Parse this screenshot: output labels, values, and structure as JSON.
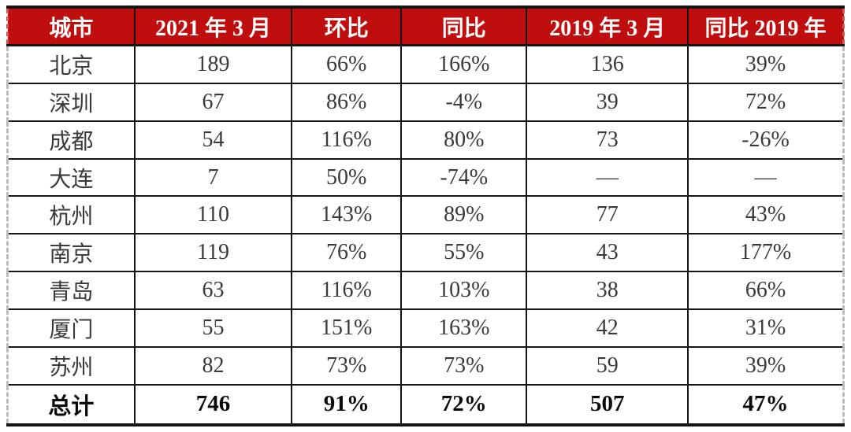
{
  "table": {
    "headers": [
      "城市",
      "2021 年 3 月",
      "环比",
      "同比",
      "2019 年 3 月",
      "同比 2019 年"
    ],
    "rows": [
      {
        "cells": [
          "北京",
          "189",
          "66%",
          "166%",
          "136",
          "39%"
        ],
        "is_total": false
      },
      {
        "cells": [
          "深圳",
          "67",
          "86%",
          "-4%",
          "39",
          "72%"
        ],
        "is_total": false
      },
      {
        "cells": [
          "成都",
          "54",
          "116%",
          "80%",
          "73",
          "-26%"
        ],
        "is_total": false
      },
      {
        "cells": [
          "大连",
          "7",
          "50%",
          "-74%",
          "—",
          "—"
        ],
        "is_total": false
      },
      {
        "cells": [
          "杭州",
          "110",
          "143%",
          "89%",
          "77",
          "43%"
        ],
        "is_total": false
      },
      {
        "cells": [
          "南京",
          "119",
          "76%",
          "55%",
          "43",
          "177%"
        ],
        "is_total": false
      },
      {
        "cells": [
          "青岛",
          "63",
          "116%",
          "103%",
          "38",
          "66%"
        ],
        "is_total": false
      },
      {
        "cells": [
          "厦门",
          "55",
          "151%",
          "163%",
          "42",
          "31%"
        ],
        "is_total": false
      },
      {
        "cells": [
          "苏州",
          "82",
          "73%",
          "73%",
          "59",
          "39%"
        ],
        "is_total": false
      },
      {
        "cells": [
          "总计",
          "746",
          "91%",
          "72%",
          "507",
          "47%"
        ],
        "is_total": true
      }
    ],
    "colors": {
      "header_bg": "#c00e0e",
      "header_text": "#ffffff",
      "body_text": "#3a3a3a",
      "border": "#141414",
      "edge_dash_header": "#d25555",
      "edge_dash_body": "#bcbcbc"
    }
  },
  "chart_data": {
    "type": "table",
    "title": "",
    "columns": [
      "城市",
      "2021 年 3 月",
      "环比",
      "同比",
      "2019 年 3 月",
      "同比 2019 年"
    ],
    "rows": [
      [
        "北京",
        189,
        "66%",
        "166%",
        136,
        "39%"
      ],
      [
        "深圳",
        67,
        "86%",
        "-4%",
        39,
        "72%"
      ],
      [
        "成都",
        54,
        "116%",
        "80%",
        73,
        "-26%"
      ],
      [
        "大连",
        7,
        "50%",
        "-74%",
        null,
        null
      ],
      [
        "杭州",
        110,
        "143%",
        "89%",
        77,
        "43%"
      ],
      [
        "南京",
        119,
        "76%",
        "55%",
        43,
        "177%"
      ],
      [
        "青岛",
        63,
        "116%",
        "103%",
        38,
        "66%"
      ],
      [
        "厦门",
        55,
        "151%",
        "163%",
        42,
        "31%"
      ],
      [
        "苏州",
        82,
        "73%",
        "73%",
        59,
        "39%"
      ],
      [
        "总计",
        746,
        "91%",
        "72%",
        507,
        "47%"
      ]
    ],
    "notes": "null rendered as em dash — ; last row 总计 is totals row (bold)"
  }
}
